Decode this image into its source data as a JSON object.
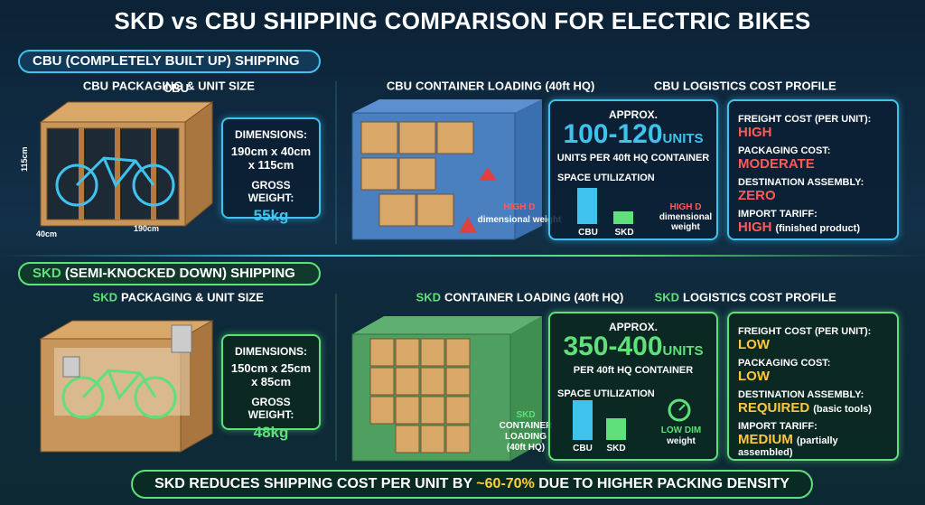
{
  "title": "SKD vs CBU SHIPPING COMPARISON FOR ELECTRIC BIKES",
  "cbu": {
    "heading": "CBU (COMPLETELY BUILT UP) SHIPPING",
    "packaging": {
      "prefix": "CBU",
      "title": "PACKAGING & UNIT SIZE",
      "crate_labels": [
        "115cm",
        "40cm",
        "190cm"
      ],
      "dimensions_label": "DIMENSIONS:",
      "dimensions": "190cm x 40cm x 115cm",
      "weight_label": "GROSS WEIGHT:",
      "weight": "55kg"
    },
    "loading": {
      "prefix": "CBU",
      "title": "CONTAINER LOADING (40ft HQ)",
      "approx": "APPROX.",
      "units": "100-120",
      "units_word": "UNITS",
      "per": "UNITS PER 40ft HQ CONTAINER",
      "space": "SPACE UTILIZATION",
      "bars": [
        "CBU",
        "SKD"
      ],
      "note_title": "HIGH D",
      "note_text": "dimensional weight"
    },
    "cost": {
      "prefix": "CBU",
      "title": "LOGISTICS COST PROFILE",
      "items": [
        {
          "label": "FREIGHT COST (PER UNIT):",
          "value": "HIGH"
        },
        {
          "label": "PACKAGING COST:",
          "value": "MODERATE"
        },
        {
          "label": "DESTINATION ASSEMBLY:",
          "value": "ZERO"
        },
        {
          "label": "IMPORT TARIFF:",
          "value": "HIGH",
          "note": "(finished product)"
        }
      ]
    }
  },
  "skd": {
    "heading_prefix": "SKD",
    "heading": "(SEMI-KNOCKED DOWN) SHIPPING",
    "packaging": {
      "prefix": "SKD",
      "title": "PACKAGING & UNIT SIZE",
      "dimensions_label": "DIMENSIONS:",
      "dimensions": "150cm x 25cm x 85cm",
      "weight_label": "GROSS WEIGHT:",
      "weight": "48kg"
    },
    "loading": {
      "prefix": "SKD",
      "title": "CONTAINER LOADING (40ft HQ)",
      "approx": "APPROX.",
      "units": "350-400",
      "units_word": "UNITS",
      "per": "PER 40ft HQ CONTAINER",
      "space": "SPACE UTILIZATION",
      "bars": [
        "CBU",
        "SKD"
      ],
      "note_left": [
        "SKD",
        "CONTAINER",
        "LOADING",
        "(40ft HQ)"
      ],
      "note_right_title": "LOW DIM",
      "note_right_text": "weight"
    },
    "cost": {
      "prefix": "SKD",
      "title": "LOGISTICS COST PROFILE",
      "items": [
        {
          "label": "FREIGHT COST (PER UNIT):",
          "value": "LOW"
        },
        {
          "label": "PACKAGING COST:",
          "value": "LOW"
        },
        {
          "label": "DESTINATION ASSEMBLY:",
          "value": "REQUIRED",
          "note": "(basic tools)"
        },
        {
          "label": "IMPORT TARIFF:",
          "value": "MEDIUM",
          "note": "(partially assembled)"
        }
      ]
    }
  },
  "footer": {
    "prefix": "SKD REDUCES SHIPPING COST PER UNIT BY",
    "highlight": "~60-70%",
    "suffix": "DUE TO HIGHER PACKING DENSITY"
  }
}
